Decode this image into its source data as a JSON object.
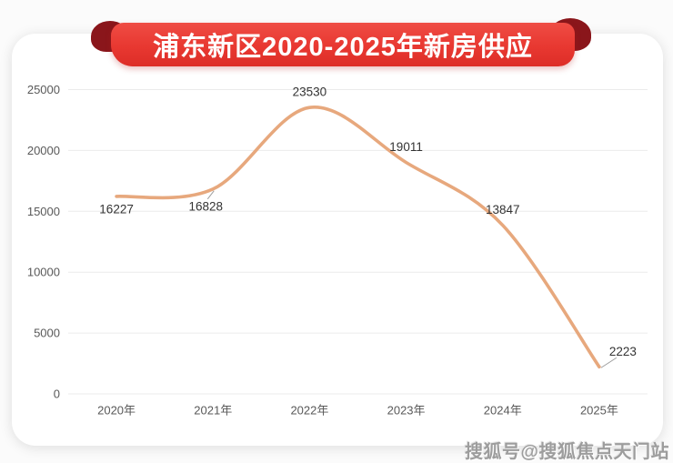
{
  "banner": {
    "title": "浦东新区2020-2025年新房供应",
    "bg_color": "#e83831",
    "fold_color": "#8a161b",
    "text_color": "#ffffff"
  },
  "watermark": "搜狐号@搜狐焦点天门站",
  "chart_data": {
    "type": "line",
    "title": "浦东新区2020-2025年新房供应",
    "categories": [
      "2020年",
      "2021年",
      "2022年",
      "2023年",
      "2024年",
      "2025年"
    ],
    "values": [
      16227,
      16828,
      23530,
      19011,
      13847,
      2223
    ],
    "xlabel": "",
    "ylabel": "",
    "ylim": [
      0,
      25000
    ],
    "y_ticks": [
      0,
      5000,
      10000,
      15000,
      20000,
      25000
    ],
    "grid": true,
    "smooth": true,
    "legend": "none",
    "label_placements": [
      "below",
      "below-leader",
      "above",
      "above",
      "above",
      "right-leader"
    ],
    "colors": {
      "line": "#e7a87d",
      "data_label": "#333333",
      "axis_label": "#595959",
      "gridline": "#ebebeb",
      "leader_line": "#9e9e9e"
    }
  }
}
